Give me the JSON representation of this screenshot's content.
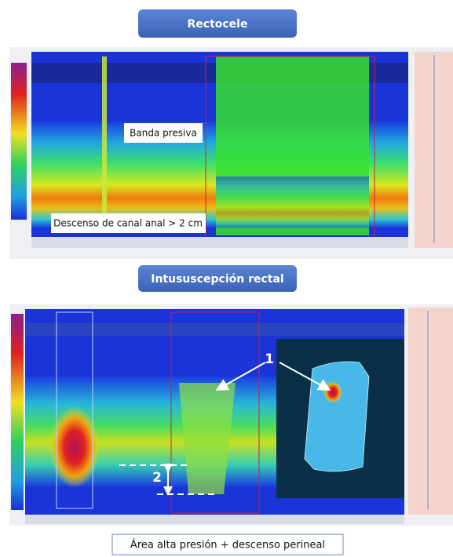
{
  "panels": [
    {
      "title": "Rectocele",
      "labels": [
        "Banda presiva",
        "Descenso de canal anal > 2 cm"
      ]
    },
    {
      "title": "Intususcepción rectal",
      "markers": [
        "1",
        "2"
      ]
    }
  ],
  "caption": "Área alta presión + descenso perineal"
}
